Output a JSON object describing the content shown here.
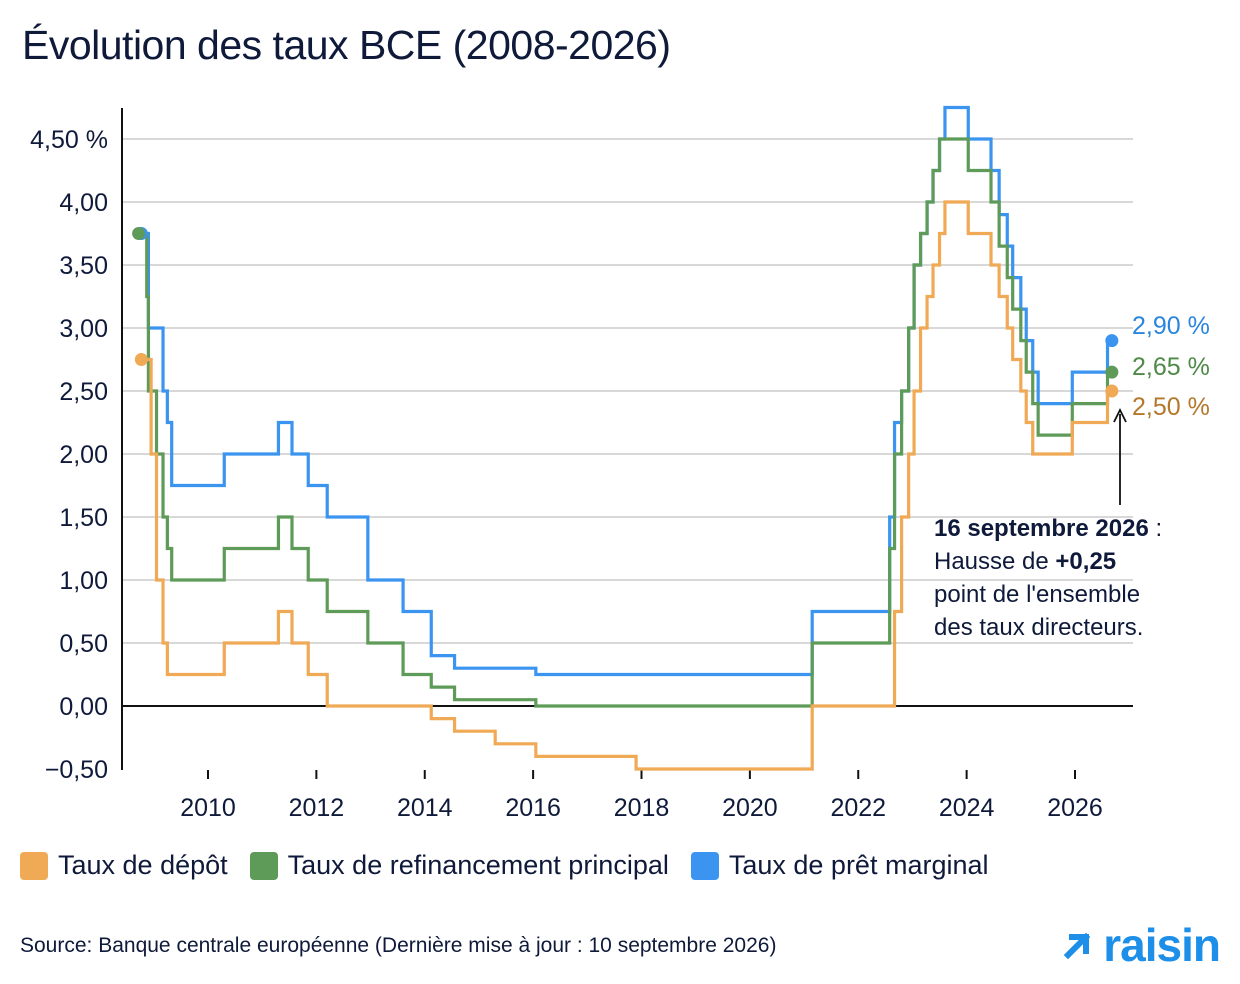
{
  "title": "Évolution des taux BCE (2008-2026)",
  "colors": {
    "depot": "#f0a955",
    "refi": "#5e9a58",
    "pret": "#3a94f0",
    "text": "#0f1a3a",
    "brand": "#1e8fe8",
    "grid": "#cccccc"
  },
  "legend": {
    "depot": "Taux de dépôt",
    "refi": "Taux de refinancement principal",
    "pret": "Taux de prêt marginal"
  },
  "source": "Source: Banque centrale européenne (Dernière mise à jour : 10 septembre 2026)",
  "logo_text": "raisin",
  "logo_icon": "arrow-up-right-icon",
  "annotation": {
    "date": "16 septembre 2026",
    "colon": " :",
    "line2_prefix": "Hausse de ",
    "line2_value": "+0,25",
    "line3": "point de l'ensemble",
    "line4": "des taux directeurs."
  },
  "end_labels": {
    "pret": "2,90 %",
    "refi": "2,65 %",
    "depot": "2,50 %"
  },
  "chart_data": {
    "type": "line",
    "step": "post",
    "ylim": [
      -0.5,
      4.75
    ],
    "xlim": [
      2008.6,
      2026.9
    ],
    "y_ticks": [
      -0.5,
      0,
      0.5,
      1,
      1.5,
      2,
      2.5,
      3,
      3.5,
      4,
      4.5
    ],
    "y_tick_labels": [
      "−0,50",
      "0,00",
      "0,50",
      "1,00",
      "1,50",
      "2,00",
      "2,50",
      "3,00",
      "3,50",
      "4,00",
      "4,50 %"
    ],
    "x_ticks": [
      2010,
      2012,
      2014,
      2016,
      2018,
      2020,
      2022,
      2024,
      2026
    ],
    "x_tick_labels": [
      "2010",
      "2012",
      "2014",
      "2016",
      "2018",
      "2020",
      "2022",
      "2024",
      "2026"
    ],
    "grid": true,
    "legend_position": "bottom",
    "series": [
      {
        "name": "Taux de prêt marginal",
        "color_key": "pret",
        "points": [
          [
            2008.77,
            3.75
          ],
          [
            2008.87,
            3.75
          ],
          [
            2008.9,
            3.0
          ],
          [
            2009.17,
            2.5
          ],
          [
            2009.25,
            2.25
          ],
          [
            2009.33,
            1.75
          ],
          [
            2010.3,
            2.0
          ],
          [
            2011.3,
            2.25
          ],
          [
            2011.55,
            2.0
          ],
          [
            2011.85,
            1.75
          ],
          [
            2012.2,
            1.5
          ],
          [
            2012.95,
            1.0
          ],
          [
            2013.6,
            0.75
          ],
          [
            2014.12,
            0.4
          ],
          [
            2014.55,
            0.3
          ],
          [
            2016.05,
            0.25
          ],
          [
            2021.15,
            0.75
          ],
          [
            2022.58,
            1.5
          ],
          [
            2022.67,
            2.25
          ],
          [
            2022.8,
            2.5
          ],
          [
            2022.93,
            3.0
          ],
          [
            2023.03,
            3.5
          ],
          [
            2023.15,
            3.75
          ],
          [
            2023.27,
            4.0
          ],
          [
            2023.38,
            4.25
          ],
          [
            2023.5,
            4.5
          ],
          [
            2023.6,
            4.75
          ],
          [
            2024.03,
            4.5
          ],
          [
            2024.45,
            4.25
          ],
          [
            2024.6,
            3.9
          ],
          [
            2024.75,
            3.65
          ],
          [
            2024.85,
            3.4
          ],
          [
            2025.0,
            3.15
          ],
          [
            2025.1,
            2.9
          ],
          [
            2025.22,
            2.65
          ],
          [
            2025.32,
            2.4
          ],
          [
            2025.95,
            2.65
          ],
          [
            2026.6,
            2.9
          ],
          [
            2026.68,
            2.9
          ]
        ],
        "end_dot": [
          2026.68,
          2.9
        ]
      },
      {
        "name": "Taux de refinancement principal",
        "color_key": "refi",
        "points": [
          [
            2008.77,
            3.75
          ],
          [
            2008.87,
            3.25
          ],
          [
            2008.9,
            2.5
          ],
          [
            2009.05,
            2.0
          ],
          [
            2009.17,
            1.5
          ],
          [
            2009.25,
            1.25
          ],
          [
            2009.33,
            1.0
          ],
          [
            2010.3,
            1.25
          ],
          [
            2011.3,
            1.5
          ],
          [
            2011.55,
            1.25
          ],
          [
            2011.85,
            1.0
          ],
          [
            2012.2,
            0.75
          ],
          [
            2012.95,
            0.5
          ],
          [
            2013.6,
            0.25
          ],
          [
            2014.12,
            0.15
          ],
          [
            2014.55,
            0.05
          ],
          [
            2016.05,
            0.0
          ],
          [
            2021.15,
            0.5
          ],
          [
            2022.58,
            1.25
          ],
          [
            2022.67,
            2.0
          ],
          [
            2022.8,
            2.5
          ],
          [
            2022.93,
            3.0
          ],
          [
            2023.03,
            3.5
          ],
          [
            2023.15,
            3.75
          ],
          [
            2023.27,
            4.0
          ],
          [
            2023.38,
            4.25
          ],
          [
            2023.5,
            4.5
          ],
          [
            2024.03,
            4.25
          ],
          [
            2024.45,
            4.0
          ],
          [
            2024.6,
            3.65
          ],
          [
            2024.75,
            3.4
          ],
          [
            2024.85,
            3.15
          ],
          [
            2025.0,
            2.9
          ],
          [
            2025.1,
            2.65
          ],
          [
            2025.22,
            2.4
          ],
          [
            2025.32,
            2.15
          ],
          [
            2025.95,
            2.4
          ],
          [
            2026.6,
            2.65
          ],
          [
            2026.68,
            2.65
          ]
        ],
        "end_dot": [
          2026.68,
          2.65
        ]
      },
      {
        "name": "Taux de dépôt",
        "color_key": "depot",
        "points": [
          [
            2008.77,
            2.75
          ],
          [
            2008.87,
            2.75
          ],
          [
            2008.95,
            2.0
          ],
          [
            2009.05,
            1.0
          ],
          [
            2009.17,
            0.5
          ],
          [
            2009.25,
            0.25
          ],
          [
            2010.3,
            0.5
          ],
          [
            2011.3,
            0.75
          ],
          [
            2011.55,
            0.5
          ],
          [
            2011.85,
            0.25
          ],
          [
            2012.2,
            0.0
          ],
          [
            2014.12,
            -0.1
          ],
          [
            2014.55,
            -0.2
          ],
          [
            2015.3,
            -0.3
          ],
          [
            2016.05,
            -0.4
          ],
          [
            2017.9,
            -0.5
          ],
          [
            2021.15,
            -0.5
          ],
          [
            2021.15,
            0.0
          ],
          [
            2022.58,
            0.0
          ],
          [
            2022.67,
            0.75
          ],
          [
            2022.8,
            1.5
          ],
          [
            2022.93,
            2.0
          ],
          [
            2023.03,
            2.5
          ],
          [
            2023.15,
            3.0
          ],
          [
            2023.27,
            3.25
          ],
          [
            2023.38,
            3.5
          ],
          [
            2023.5,
            3.75
          ],
          [
            2023.6,
            4.0
          ],
          [
            2024.03,
            3.75
          ],
          [
            2024.45,
            3.5
          ],
          [
            2024.6,
            3.25
          ],
          [
            2024.75,
            3.0
          ],
          [
            2024.85,
            2.75
          ],
          [
            2025.0,
            2.5
          ],
          [
            2025.1,
            2.25
          ],
          [
            2025.22,
            2.0
          ],
          [
            2025.32,
            2.0
          ],
          [
            2025.95,
            2.25
          ],
          [
            2026.6,
            2.5
          ],
          [
            2026.68,
            2.5
          ]
        ],
        "end_dot": [
          2026.68,
          2.5
        ]
      }
    ],
    "start_dots": [
      {
        "series": "pret",
        "x": 2008.77,
        "y": 3.75
      },
      {
        "series": "refi",
        "x": 2008.72,
        "y": 3.75
      },
      {
        "series": "depot",
        "x": 2008.77,
        "y": 2.75
      }
    ]
  }
}
